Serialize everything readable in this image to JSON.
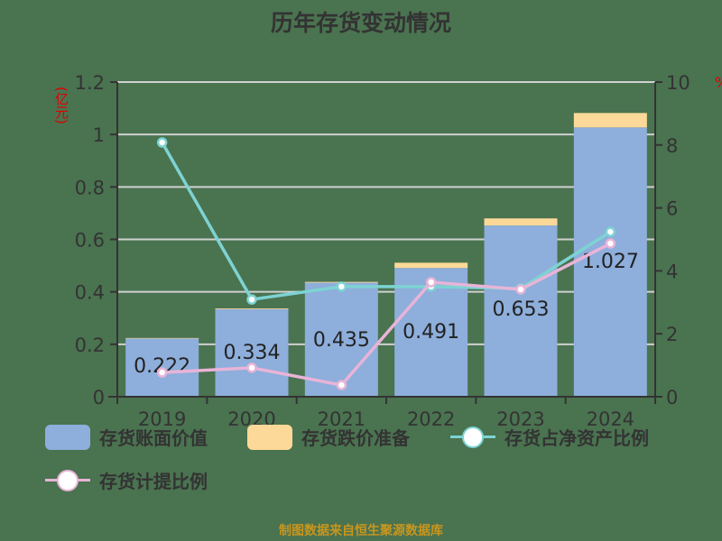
{
  "title": "历年存货变动情况",
  "source": "制图数据来自恒生聚源数据库",
  "axes": {
    "left_unit": "(亿元)",
    "right_unit": "%",
    "left_ticks": [
      "0",
      "0.2",
      "0.4",
      "0.6",
      "0.8",
      "1",
      "1.2"
    ],
    "right_ticks": [
      "0",
      "2",
      "4",
      "6",
      "8",
      "10"
    ]
  },
  "legend": [
    {
      "label": "存货账面价值",
      "type": "bar",
      "color": "#8eaedb"
    },
    {
      "label": "存货跌价准备",
      "type": "bar",
      "color": "#fcd998"
    },
    {
      "label": "存货占净资产比例",
      "type": "line",
      "color": "#7dd3d3"
    },
    {
      "label": "存货计提比例",
      "type": "line",
      "color": "#e8b4d8"
    }
  ],
  "colors": {
    "book_value": "#8eaedb",
    "impairment": "#fcd998",
    "ratio_net_assets": "#7dd3d3",
    "provision_ratio": "#e8b4d8"
  },
  "chart_data": {
    "type": "bar",
    "title": "历年存货变动情况",
    "categories": [
      "2019",
      "2020",
      "2021",
      "2022",
      "2023",
      "2024"
    ],
    "xlabel": "",
    "ylabel": "(亿元)",
    "ylabel_right": "%",
    "ylim": [
      0,
      1.2
    ],
    "ylim_right": [
      0,
      10
    ],
    "grid": true,
    "legend_position": "bottom",
    "stacked": true,
    "series": [
      {
        "name": "存货账面价值",
        "type": "bar",
        "axis": "left",
        "values": [
          0.222,
          0.334,
          0.435,
          0.491,
          0.653,
          1.027
        ],
        "labels": [
          "0.222",
          "0.334",
          "0.435",
          "0.491",
          "0.653",
          "1.027"
        ]
      },
      {
        "name": "存货跌价准备",
        "type": "bar",
        "axis": "left",
        "values": [
          0.002,
          0.003,
          0.003,
          0.02,
          0.027,
          0.055
        ]
      },
      {
        "name": "存货占净资产比例",
        "type": "line",
        "axis": "right",
        "values": [
          8.08,
          3.09,
          3.5,
          3.5,
          3.44,
          5.24
        ]
      },
      {
        "name": "存货计提比例",
        "type": "line",
        "axis": "right",
        "values": [
          0.77,
          0.92,
          0.37,
          3.64,
          3.41,
          4.87
        ]
      }
    ]
  }
}
